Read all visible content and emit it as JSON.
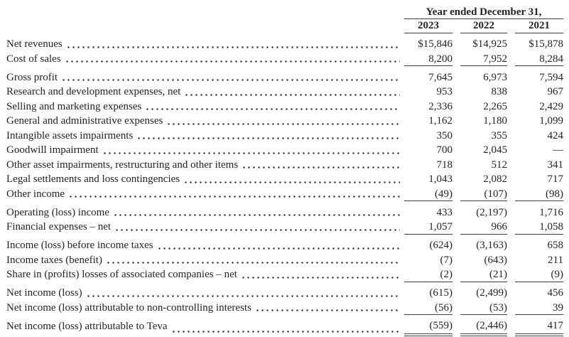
{
  "colors": {
    "background": "#ffffff",
    "text": "#232325",
    "rule": "#3f3f42"
  },
  "table": {
    "header": {
      "title": "Year ended December 31,",
      "columns": [
        "2023",
        "2022",
        "2021"
      ]
    },
    "rows": [
      {
        "label": "Net revenues",
        "values": [
          "$15,846",
          "$14,925",
          "$15,878"
        ]
      },
      {
        "label": "Cost of sales",
        "values": [
          "8,200",
          "7,952",
          "8,284"
        ]
      },
      {
        "label": "Gross profit",
        "values": [
          "7,645",
          "6,973",
          "7,594"
        ]
      },
      {
        "label": "Research and development expenses, net",
        "values": [
          "953",
          "838",
          "967"
        ]
      },
      {
        "label": "Selling and marketing expenses",
        "values": [
          "2,336",
          "2,265",
          "2,429"
        ]
      },
      {
        "label": "General and administrative expenses",
        "values": [
          "1,162",
          "1,180",
          "1,099"
        ]
      },
      {
        "label": "Intangible assets impairments",
        "values": [
          "350",
          "355",
          "424"
        ]
      },
      {
        "label": "Goodwill impairment",
        "values": [
          "700",
          "2,045",
          "—"
        ]
      },
      {
        "label": "Other asset impairments, restructuring and other items",
        "values": [
          "718",
          "512",
          "341"
        ]
      },
      {
        "label": "Legal settlements and loss contingencies",
        "values": [
          "1,043",
          "2,082",
          "717"
        ]
      },
      {
        "label": "Other income",
        "values": [
          "(49)",
          "(107)",
          "(98)"
        ]
      },
      {
        "label": "Operating (loss) income",
        "values": [
          "433",
          "(2,197)",
          "1,716"
        ]
      },
      {
        "label": "Financial expenses – net",
        "values": [
          "1,057",
          "966",
          "1,058"
        ]
      },
      {
        "label": "Income (loss) before income taxes",
        "values": [
          "(624)",
          "(3,163)",
          "658"
        ]
      },
      {
        "label": "Income taxes (benefit)",
        "values": [
          "(7)",
          "(643)",
          "211"
        ]
      },
      {
        "label": "Share in (profits) losses of associated companies – net",
        "values": [
          "(2)",
          "(21)",
          "(9)"
        ]
      },
      {
        "label": "Net income (loss)",
        "values": [
          "(615)",
          "(2,499)",
          "456"
        ]
      },
      {
        "label": "Net income (loss) attributable to non-controlling interests",
        "values": [
          "(56)",
          "(53)",
          "39"
        ]
      },
      {
        "label": "Net income (loss) attributable to Teva",
        "values": [
          "(559)",
          "(2,446)",
          "417"
        ]
      }
    ]
  }
}
